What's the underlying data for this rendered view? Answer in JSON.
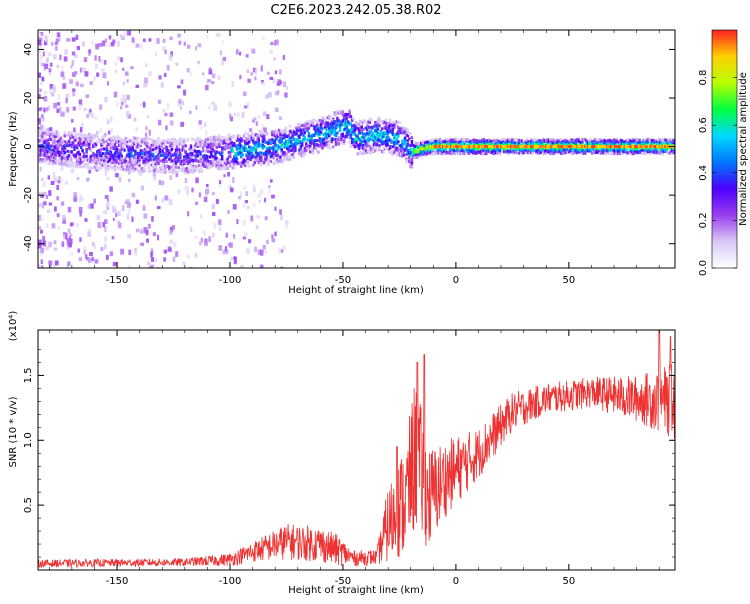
{
  "figure": {
    "title": "C2E6.2023.242.05.38.R02"
  },
  "chart_data": [
    {
      "type": "heatmap",
      "title": "C2E6.2023.242.05.38.R02",
      "xlabel": "Height of straight line (km)",
      "ylabel": "Frequency (Hz)",
      "xlim": [
        -185,
        97
      ],
      "ylim": [
        -50,
        48
      ],
      "x_ticks": [
        -150,
        -100,
        -50,
        0,
        50
      ],
      "y_ticks": [
        -40,
        -20,
        0,
        20,
        40
      ],
      "colorbar": {
        "label": "Normalized spectral amplitude",
        "range": [
          0,
          1
        ],
        "ticks": [
          0.0,
          0.2,
          0.4,
          0.6,
          0.8
        ],
        "colormap": [
          "#ffffff",
          "#d8c8f5",
          "#9a3ef0",
          "#4b00ff",
          "#0078ff",
          "#00d8ff",
          "#00ff40",
          "#b8ff00",
          "#ffd000",
          "#ff2020"
        ]
      },
      "ridge": {
        "description_points": [
          {
            "x": -185,
            "y": 0
          },
          {
            "x": -150,
            "y": -3
          },
          {
            "x": -120,
            "y": -4
          },
          {
            "x": -100,
            "y": -2
          },
          {
            "x": -80,
            "y": 0
          },
          {
            "x": -60,
            "y": 5
          },
          {
            "x": -48,
            "y": 9
          },
          {
            "x": -45,
            "y": 3
          },
          {
            "x": -35,
            "y": 5
          },
          {
            "x": -25,
            "y": 3
          },
          {
            "x": -20,
            "y": -2
          },
          {
            "x": -10,
            "y": 0
          },
          {
            "x": 0,
            "y": 0
          },
          {
            "x": 50,
            "y": 0
          },
          {
            "x": 97,
            "y": 0
          }
        ]
      },
      "grid": false
    },
    {
      "type": "line",
      "title": "",
      "xlabel": "Height of straight line (km)",
      "ylabel": "SNR (10 * v/v)",
      "y_multiplier": "(x10⁴)",
      "xlim": [
        -185,
        97
      ],
      "ylim": [
        0,
        1.85
      ],
      "x_ticks": [
        -150,
        -100,
        -50,
        0,
        50
      ],
      "y_ticks": [
        0.5,
        1.0,
        1.5
      ],
      "y_tick_labels": [
        "0.5",
        "1.0",
        "1.5"
      ],
      "series": [
        {
          "color": "#ee3030",
          "envelope": [
            {
              "x": -185,
              "mean": 0.05,
              "noise": 0.03
            },
            {
              "x": -120,
              "mean": 0.06,
              "noise": 0.03
            },
            {
              "x": -100,
              "mean": 0.08,
              "noise": 0.05
            },
            {
              "x": -90,
              "mean": 0.14,
              "noise": 0.08
            },
            {
              "x": -75,
              "mean": 0.22,
              "noise": 0.14
            },
            {
              "x": -60,
              "mean": 0.2,
              "noise": 0.14
            },
            {
              "x": -52,
              "mean": 0.15,
              "noise": 0.12
            },
            {
              "x": -45,
              "mean": 0.09,
              "noise": 0.06
            },
            {
              "x": -35,
              "mean": 0.1,
              "noise": 0.06
            },
            {
              "x": -30,
              "mean": 0.35,
              "noise": 0.3
            },
            {
              "x": -22,
              "mean": 0.55,
              "noise": 0.45
            },
            {
              "x": -18,
              "mean": 0.9,
              "noise": 0.6
            },
            {
              "x": -12,
              "mean": 0.55,
              "noise": 0.4
            },
            {
              "x": -5,
              "mean": 0.7,
              "noise": 0.3
            },
            {
              "x": 10,
              "mean": 0.9,
              "noise": 0.2
            },
            {
              "x": 25,
              "mean": 1.22,
              "noise": 0.15
            },
            {
              "x": 40,
              "mean": 1.32,
              "noise": 0.12
            },
            {
              "x": 60,
              "mean": 1.37,
              "noise": 0.12
            },
            {
              "x": 80,
              "mean": 1.32,
              "noise": 0.18
            },
            {
              "x": 97,
              "mean": 1.3,
              "noise": 0.3
            }
          ],
          "spikes": [
            {
              "x": -17,
              "y": 1.6
            },
            {
              "x": -14,
              "y": 1.66
            },
            {
              "x": -26,
              "y": 0.95
            },
            {
              "x": 90,
              "y": 1.85
            },
            {
              "x": 95,
              "y": 1.8
            }
          ]
        }
      ],
      "grid": false
    }
  ]
}
